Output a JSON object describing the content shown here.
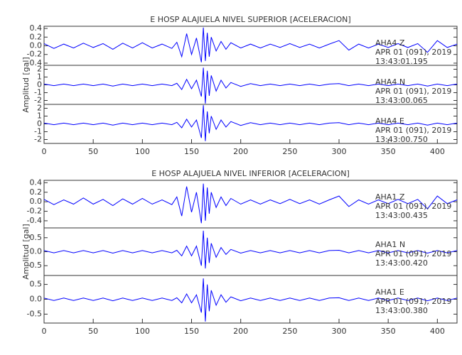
{
  "chart_data": [
    {
      "type": "line",
      "title": "E HOSP ALAJUELA NIVEL SUPERIOR [ACELERACION]",
      "y_label": "Amplitud [gal]",
      "color": "#0000ff",
      "x": [
        0,
        10,
        20,
        30,
        40,
        50,
        60,
        70,
        80,
        90,
        100,
        110,
        120,
        130,
        135,
        140,
        145,
        150,
        155,
        160,
        162,
        164,
        166,
        168,
        170,
        175,
        180,
        185,
        190,
        200,
        210,
        220,
        230,
        240,
        250,
        260,
        270,
        280,
        290,
        300,
        310,
        320,
        330,
        340,
        350,
        360,
        370,
        380,
        390,
        400,
        410,
        420
      ],
      "xlim": [
        0,
        420
      ],
      "xticks": [
        0,
        50,
        100,
        150,
        200,
        250,
        300,
        350,
        400
      ],
      "panels": [
        {
          "station": "AHA4   Z",
          "date": "APR 01 (091), 2019",
          "time": "13:43:01.195",
          "ylim": [
            -0.45,
            0.45
          ],
          "yticks": [
            -0.4,
            -0.2,
            {
              "value": 0,
              "label": "0.0"
            },
            0.2,
            0.4
          ],
          "values": [
            0.05,
            -0.06,
            0.04,
            -0.05,
            0.06,
            -0.04,
            0.05,
            -0.08,
            0.06,
            -0.05,
            0.07,
            -0.05,
            0.04,
            -0.06,
            0.08,
            -0.25,
            0.28,
            -0.2,
            0.18,
            -0.38,
            0.42,
            -0.35,
            0.3,
            -0.25,
            0.2,
            -0.12,
            0.1,
            -0.08,
            0.07,
            -0.05,
            0.04,
            -0.05,
            0.04,
            -0.04,
            0.05,
            -0.04,
            0.04,
            -0.05,
            0.04,
            0.12,
            -0.1,
            0.04,
            -0.05,
            0.04,
            -0.04,
            0.05,
            -0.04,
            0.05,
            -0.15,
            0.12,
            -0.04,
            0.04
          ]
        },
        {
          "station": "AHA4   N",
          "date": "APR 01 (091), 2019",
          "time": "13:43:00.065",
          "ylim": [
            -2.5,
            2.5
          ],
          "yticks": [
            -2,
            -1,
            0,
            1,
            2
          ],
          "values": [
            0.1,
            -0.1,
            0.1,
            -0.1,
            0.1,
            -0.1,
            0.1,
            -0.15,
            0.1,
            -0.1,
            0.1,
            -0.1,
            0.1,
            -0.1,
            0.2,
            -0.6,
            0.7,
            -0.5,
            0.6,
            -1.5,
            2.2,
            -2.4,
            1.8,
            -1.4,
            1.2,
            -0.8,
            0.6,
            -0.4,
            0.3,
            -0.2,
            0.15,
            -0.1,
            0.1,
            -0.1,
            0.1,
            -0.1,
            0.1,
            -0.1,
            0.1,
            0.15,
            -0.1,
            0.1,
            -0.1,
            0.1,
            -0.1,
            0.1,
            -0.1,
            0.1,
            -0.15,
            0.1,
            -0.1,
            0.1
          ]
        },
        {
          "station": "AHA4   E",
          "date": "APR 01 (091), 2019",
          "time": "13:43:00.750",
          "ylim": [
            -2.5,
            2.5
          ],
          "yticks": [
            -2,
            -1,
            0,
            1,
            2
          ],
          "values": [
            0.1,
            -0.1,
            0.1,
            -0.1,
            0.1,
            -0.1,
            0.1,
            -0.15,
            0.1,
            -0.1,
            0.1,
            -0.1,
            0.1,
            -0.1,
            0.2,
            -0.5,
            0.6,
            -0.4,
            0.5,
            -1.8,
            2.4,
            -2.2,
            1.6,
            -1.2,
            1.0,
            -0.7,
            0.5,
            -0.4,
            0.3,
            -0.2,
            0.15,
            -0.1,
            0.1,
            -0.1,
            0.1,
            -0.1,
            0.1,
            -0.1,
            0.1,
            0.15,
            -0.1,
            0.1,
            -0.1,
            0.1,
            -0.1,
            0.1,
            -0.1,
            0.1,
            -0.15,
            0.1,
            -0.1,
            0.1
          ]
        }
      ]
    },
    {
      "type": "line",
      "title": "E HOSP ALAJUELA NIVEL INFERIOR [ACELERACION]",
      "y_label": "Amplitud [gal]",
      "color": "#0000ff",
      "x": [
        0,
        10,
        20,
        30,
        40,
        50,
        60,
        70,
        80,
        90,
        100,
        110,
        120,
        130,
        135,
        140,
        145,
        150,
        155,
        160,
        162,
        164,
        166,
        168,
        170,
        175,
        180,
        185,
        190,
        200,
        210,
        220,
        230,
        240,
        250,
        260,
        270,
        280,
        290,
        300,
        310,
        320,
        330,
        340,
        350,
        360,
        370,
        380,
        390,
        400,
        410,
        420
      ],
      "xlim": [
        0,
        420
      ],
      "xticks": [
        0,
        50,
        100,
        150,
        200,
        250,
        300,
        350,
        400
      ],
      "panels": [
        {
          "station": "AHA1   Z",
          "date": "APR 01 (091), 2019",
          "time": "13:43:00.435",
          "ylim": [
            -0.55,
            0.45
          ],
          "yticks": [
            -0.4,
            -0.2,
            {
              "value": 0,
              "label": "0.0"
            },
            0.2,
            0.4
          ],
          "values": [
            0.05,
            -0.06,
            0.04,
            -0.05,
            0.08,
            -0.05,
            0.05,
            -0.08,
            0.06,
            -0.05,
            0.07,
            -0.05,
            0.04,
            -0.06,
            0.1,
            -0.3,
            0.32,
            -0.22,
            0.2,
            -0.45,
            0.38,
            -0.4,
            0.3,
            -0.25,
            0.2,
            -0.12,
            0.1,
            -0.08,
            0.07,
            -0.05,
            0.04,
            -0.05,
            0.04,
            -0.04,
            0.05,
            -0.04,
            0.04,
            -0.05,
            0.04,
            0.12,
            -0.1,
            0.04,
            -0.05,
            0.04,
            -0.04,
            0.05,
            -0.04,
            0.05,
            -0.15,
            0.12,
            -0.04,
            0.04
          ]
        },
        {
          "station": "AHA1   N",
          "date": "APR 01 (091), 2019",
          "time": "13:43:00.420",
          "ylim": [
            -0.85,
            0.85
          ],
          "yticks": [
            -0.5,
            {
              "value": 0,
              "label": "0.0"
            },
            0.5
          ],
          "values": [
            0.04,
            -0.04,
            0.04,
            -0.04,
            0.04,
            -0.04,
            0.04,
            -0.05,
            0.04,
            -0.04,
            0.04,
            -0.04,
            0.04,
            -0.04,
            0.05,
            -0.15,
            0.2,
            -0.15,
            0.2,
            -0.5,
            0.75,
            -0.6,
            0.5,
            -0.4,
            0.3,
            -0.2,
            0.15,
            -0.1,
            0.08,
            -0.05,
            0.04,
            -0.04,
            0.04,
            -0.04,
            0.04,
            -0.04,
            0.04,
            -0.04,
            0.04,
            0.05,
            -0.04,
            0.04,
            -0.04,
            0.04,
            -0.04,
            0.04,
            -0.04,
            0.04,
            -0.05,
            0.04,
            -0.04,
            0.04
          ]
        },
        {
          "station": "AHA1   E",
          "date": "APR 01 (091), 2019",
          "time": "13:43:00.380",
          "ylim": [
            -0.8,
            0.8
          ],
          "yticks": [
            -0.5,
            {
              "value": 0,
              "label": "0.0"
            },
            0.5
          ],
          "values": [
            0.04,
            -0.04,
            0.04,
            -0.04,
            0.04,
            -0.04,
            0.04,
            -0.05,
            0.04,
            -0.04,
            0.04,
            -0.04,
            0.04,
            -0.04,
            0.05,
            -0.12,
            0.18,
            -0.12,
            0.15,
            -0.45,
            0.7,
            -0.75,
            0.5,
            -0.4,
            0.3,
            -0.2,
            0.15,
            -0.1,
            0.08,
            -0.05,
            0.04,
            -0.04,
            0.04,
            -0.04,
            0.04,
            -0.04,
            0.04,
            -0.04,
            0.04,
            0.05,
            -0.04,
            0.04,
            -0.04,
            0.04,
            -0.04,
            0.04,
            -0.04,
            0.04,
            -0.05,
            0.04,
            -0.04,
            0.04
          ]
        }
      ]
    }
  ]
}
